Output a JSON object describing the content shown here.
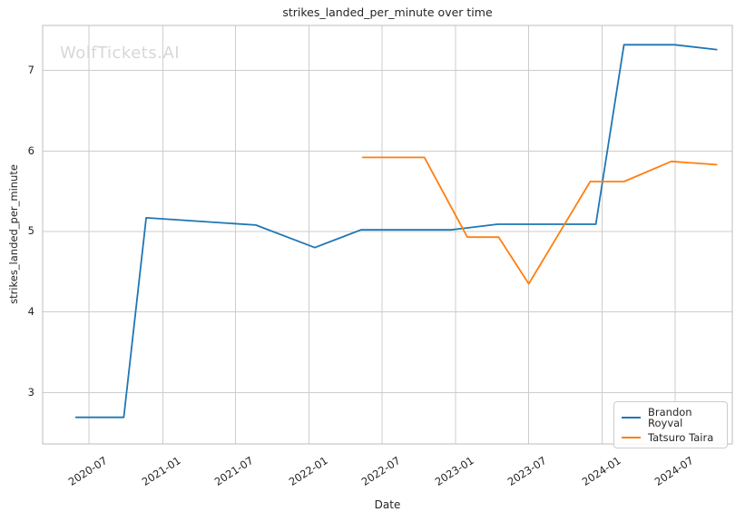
{
  "figure": {
    "title": "strikes_landed_per_minute over time",
    "watermark": "WolfTickets.AI",
    "x_axis_label": "Date",
    "y_axis_label": "strikes_landed_per_minute"
  },
  "colors": {
    "series_blue": "#1f77b4",
    "series_orange": "#ff7f0e",
    "grid": "#cdcdcd",
    "spine": "#bdbdbd",
    "text": "#262626",
    "watermark": "#d7d7d7"
  },
  "legend": {
    "position": "lower right",
    "entries": [
      {
        "label": "Brandon Royval",
        "color": "#1f77b4"
      },
      {
        "label": "Tatsuro Taira",
        "color": "#ff7f0e"
      }
    ]
  },
  "chart_data": {
    "type": "line",
    "title": "strikes_landed_per_minute over time",
    "xlabel": "Date",
    "ylabel": "strikes_landed_per_minute",
    "grid": true,
    "legend_position": "lower right",
    "x_tick_labels": [
      "2020-07",
      "2021-01",
      "2021-07",
      "2022-01",
      "2022-07",
      "2023-01",
      "2023-07",
      "2024-01",
      "2024-07"
    ],
    "y_ticks": [
      3,
      4,
      5,
      6,
      7
    ],
    "x_range": [
      "2020-03-08",
      "2024-11-20"
    ],
    "y_range": [
      2.36,
      7.56
    ],
    "series": [
      {
        "name": "Brandon Royval",
        "color": "#1f77b4",
        "points": [
          [
            "2020-05-30",
            2.69
          ],
          [
            "2020-09-26",
            2.69
          ],
          [
            "2020-11-21",
            5.17
          ],
          [
            "2021-08-21",
            5.08
          ],
          [
            "2022-01-15",
            4.8
          ],
          [
            "2022-05-10",
            5.02
          ],
          [
            "2022-12-20",
            5.02
          ],
          [
            "2023-04-15",
            5.09
          ],
          [
            "2023-12-16",
            5.09
          ],
          [
            "2024-02-24",
            7.32
          ],
          [
            "2024-06-29",
            7.32
          ],
          [
            "2024-10-12",
            7.26
          ]
        ]
      },
      {
        "name": "Tatsuro Taira",
        "color": "#ff7f0e",
        "points": [
          [
            "2022-05-14",
            5.92
          ],
          [
            "2022-10-15",
            5.92
          ],
          [
            "2023-01-30",
            4.93
          ],
          [
            "2023-04-18",
            4.93
          ],
          [
            "2023-07-02",
            4.35
          ],
          [
            "2023-12-02",
            5.62
          ],
          [
            "2024-02-24",
            5.62
          ],
          [
            "2024-06-21",
            5.87
          ],
          [
            "2024-10-12",
            5.83
          ]
        ]
      }
    ]
  }
}
